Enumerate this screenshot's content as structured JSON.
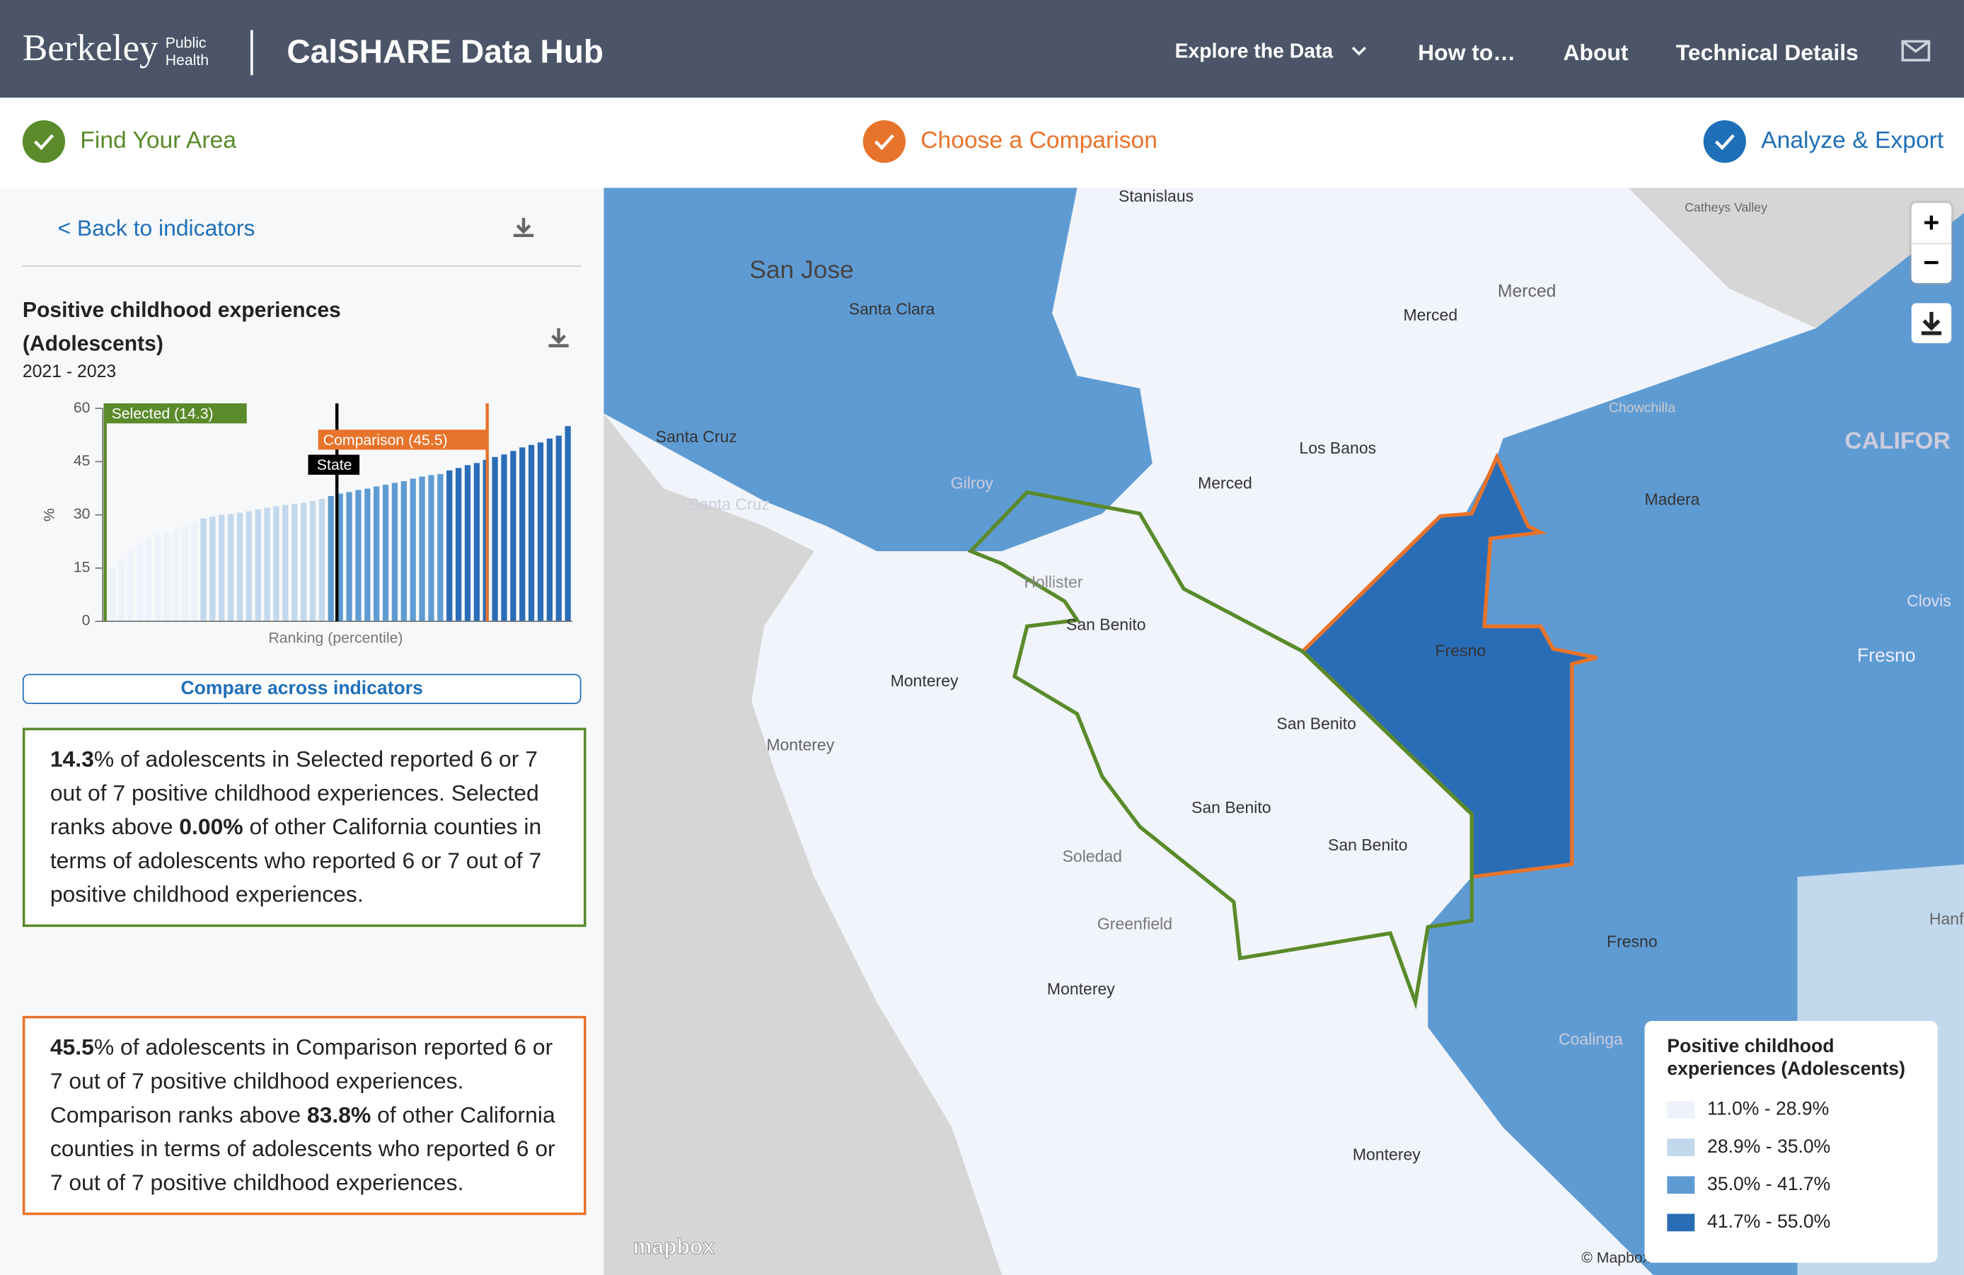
{
  "header": {
    "brand": "Berkeley",
    "brand_sub": [
      "Public",
      "Health"
    ],
    "title": "CalSHARE Data Hub",
    "nav": [
      "Explore the Data",
      "How to…",
      "About",
      "Technical Details"
    ]
  },
  "steps": [
    "Find Your Area",
    "Choose a Comparison",
    "Analyze & Export"
  ],
  "panel": {
    "back": "< Back to indicators",
    "compare_button": "Compare across indicators"
  },
  "chart_data": {
    "type": "bar",
    "title": "Positive childhood experiences (Adolescents)",
    "subtitle": "2021 - 2023",
    "y_label": "%",
    "x_label": "Ranking (percentile)",
    "values": [
      15.5,
      17,
      20,
      22,
      23.5,
      24.5,
      25,
      26,
      27,
      28,
      29,
      29.5,
      30,
      30.2,
      30.6,
      31,
      31.5,
      32,
      32.4,
      32.8,
      33.1,
      33.4,
      33.9,
      34.5,
      35.3,
      36,
      36.4,
      37,
      37.4,
      38,
      38.5,
      39,
      39.5,
      40.2,
      40.8,
      41.2,
      41.5,
      42.5,
      43.2,
      44,
      44.6,
      45.5,
      46.3,
      47,
      48,
      49,
      49.7,
      50.4,
      51.5,
      52.3,
      55
    ],
    "ylim": [
      0,
      60
    ],
    "yticks": [
      0,
      15,
      30,
      45,
      60
    ],
    "markers": {
      "selected": "Selected  (14.3)",
      "comparison": "Comparison  (45.5)",
      "state": "State"
    }
  },
  "summaries": [
    [
      "14.3",
      "% of adolescents in Selected reported 6 or 7 out of 7 positive childhood experiences. Selected ranks above ",
      "0.00%",
      " of other California counties in terms of adolescents who reported 6 or 7 out of 7 positive childhood experiences."
    ],
    [
      "45.5",
      "% of adolescents in Comparison reported 6 or 7 out of 7 positive childhood experiences. Comparison ranks above ",
      "83.8%",
      " of other California counties in terms of adolescents who reported 6 or 7 out of 7 positive childhood experiences."
    ]
  ],
  "legend": {
    "title": "Positive childhood experiences (Adolescents)",
    "items": [
      {
        "label": "11.0% - 28.9%",
        "range": [
          11.0,
          28.9
        ],
        "color": "#edf2fb"
      },
      {
        "label": "28.9% - 35.0%",
        "range": [
          28.9,
          35.0
        ],
        "color": "#c2d8ec"
      },
      {
        "label": "35.0% - 41.7%",
        "range": [
          35.0,
          41.7
        ],
        "color": "#5f9bd3"
      },
      {
        "label": "41.7% - 55.0%",
        "range": [
          41.7,
          55.0
        ],
        "color": "#2a6db7"
      }
    ]
  },
  "map": {
    "labels": [
      "Stanislaus",
      "San Jose",
      "Santa Clara",
      "Merced",
      "Merced",
      "Catheys Valley",
      "Chowchilla",
      "CALIFOR",
      "Santa Cruz",
      "Los Banos",
      "Merced",
      "Gilroy",
      "Santa Cruz",
      "Madera",
      "Hollister",
      "San Benito",
      "Clovis",
      "Fresno",
      "Fresno",
      "Monterey",
      "San Benito",
      "Monterey",
      "San Benito",
      "San Benito",
      "Soledad",
      "Greenfield",
      "Hanf",
      "Fresno",
      "Monterey",
      "Coalinga",
      "Monterey"
    ],
    "attribution": "© Mapbox",
    "logo": "mapbox",
    "zoom_in": "+",
    "zoom_out": "−"
  }
}
